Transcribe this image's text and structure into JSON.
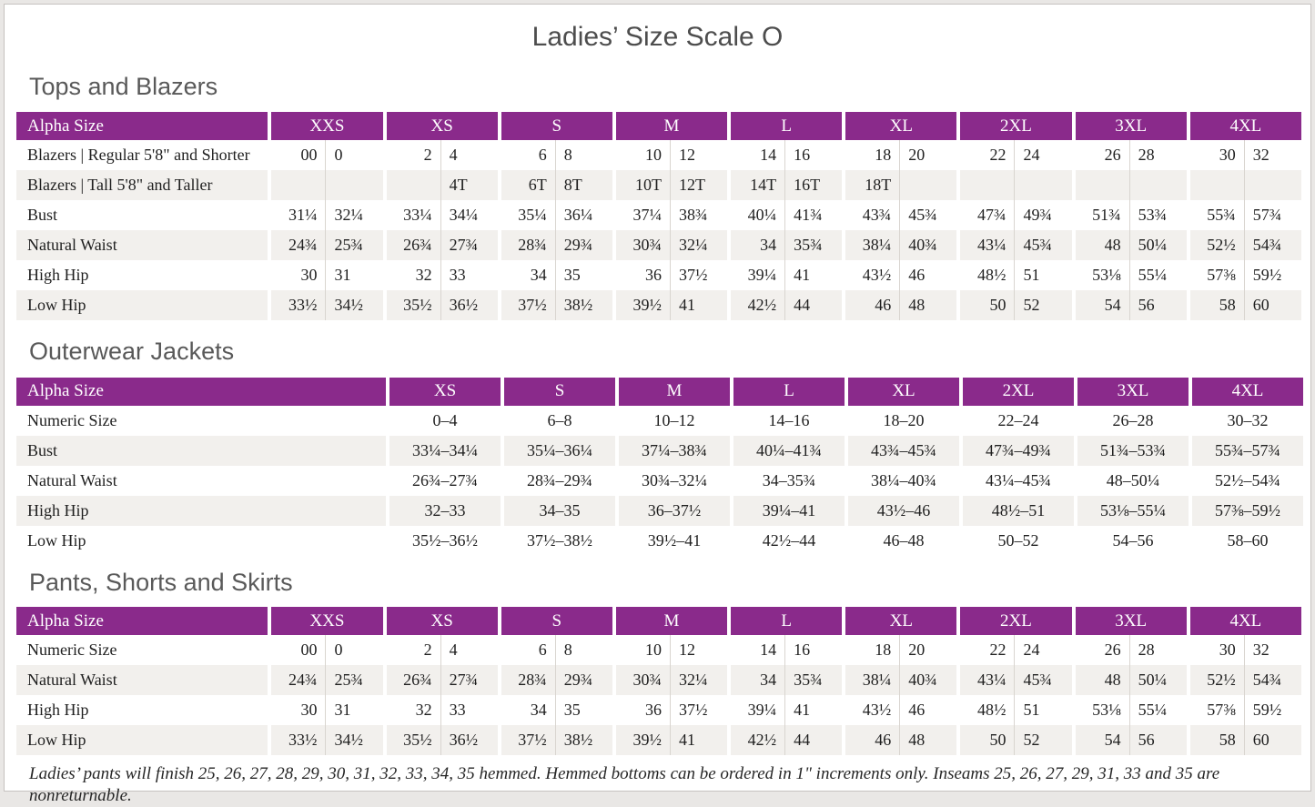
{
  "page": {
    "title": "Ladies’ Size Scale O",
    "footnote": "Ladies’ pants will finish 25, 26, 27, 28, 29, 30, 31, 32, 33, 34, 35 hemmed. Hemmed bottoms can be ordered in 1\" increments only. Inseams 25, 26, 27, 29, 31, 33 and 35 are nonreturnable."
  },
  "colors": {
    "accent_purple": "#8A2A8B",
    "alt_row": "#F2F0ED",
    "heading_gray": "#595959"
  },
  "tables": [
    {
      "id": "tops-and-blazers",
      "section_title": "Tops and Blazers",
      "header_label": "Alpha Size",
      "paired": true,
      "columns": [
        "XXS",
        "XS",
        "S",
        "M",
        "L",
        "XL",
        "2XL",
        "3XL",
        "4XL"
      ],
      "rows": [
        {
          "label": "Blazers | Regular 5'8\" and Shorter",
          "cells": [
            "00",
            "0",
            "2",
            "4",
            "6",
            "8",
            "10",
            "12",
            "14",
            "16",
            "18",
            "20",
            "22",
            "24",
            "26",
            "28",
            "30",
            "32"
          ]
        },
        {
          "label": "Blazers | Tall 5'8\" and Taller",
          "cells": [
            "",
            "",
            "",
            "4T",
            "6T",
            "8T",
            "10T",
            "12T",
            "14T",
            "16T",
            "18T",
            "",
            "",
            "",
            "",
            "",
            "",
            ""
          ]
        },
        {
          "label": "Bust",
          "cells": [
            "31¼",
            "32¼",
            "33¼",
            "34¼",
            "35¼",
            "36¼",
            "37¼",
            "38¾",
            "40¼",
            "41¾",
            "43¾",
            "45¾",
            "47¾",
            "49¾",
            "51¾",
            "53¾",
            "55¾",
            "57¾"
          ]
        },
        {
          "label": "Natural Waist",
          "cells": [
            "24¾",
            "25¾",
            "26¾",
            "27¾",
            "28¾",
            "29¾",
            "30¾",
            "32¼",
            "34",
            "35¾",
            "38¼",
            "40¾",
            "43¼",
            "45¾",
            "48",
            "50¼",
            "52½",
            "54¾"
          ]
        },
        {
          "label": "High Hip",
          "cells": [
            "30",
            "31",
            "32",
            "33",
            "34",
            "35",
            "36",
            "37½",
            "39¼",
            "41",
            "43½",
            "46",
            "48½",
            "51",
            "53⅛",
            "55¼",
            "57⅜",
            "59½"
          ]
        },
        {
          "label": "Low Hip",
          "cells": [
            "33½",
            "34½",
            "35½",
            "36½",
            "37½",
            "38½",
            "39½",
            "41",
            "42½",
            "44",
            "46",
            "48",
            "50",
            "52",
            "54",
            "56",
            "58",
            "60"
          ]
        }
      ]
    },
    {
      "id": "outerwear-jackets",
      "section_title": "Outerwear Jackets",
      "header_label": "Alpha Size",
      "paired": false,
      "columns": [
        "XS",
        "S",
        "M",
        "L",
        "XL",
        "2XL",
        "3XL",
        "4XL"
      ],
      "rows": [
        {
          "label": "Numeric Size",
          "cells": [
            "0–4",
            "6–8",
            "10–12",
            "14–16",
            "18–20",
            "22–24",
            "26–28",
            "30–32"
          ]
        },
        {
          "label": "Bust",
          "cells": [
            "33¼–34¼",
            "35¼–36¼",
            "37¼–38¾",
            "40¼–41¾",
            "43¾–45¾",
            "47¾–49¾",
            "51¾–53¾",
            "55¾–57¾"
          ]
        },
        {
          "label": "Natural Waist",
          "cells": [
            "26¾–27¾",
            "28¾–29¾",
            "30¾–32¼",
            "34–35¾",
            "38¼–40¾",
            "43¼–45¾",
            "48–50¼",
            "52½–54¾"
          ]
        },
        {
          "label": "High Hip",
          "cells": [
            "32–33",
            "34–35",
            "36–37½",
            "39¼–41",
            "43½–46",
            "48½–51",
            "53⅛–55¼",
            "57⅜–59½"
          ]
        },
        {
          "label": "Low Hip",
          "cells": [
            "35½–36½",
            "37½–38½",
            "39½–41",
            "42½–44",
            "46–48",
            "50–52",
            "54–56",
            "58–60"
          ]
        }
      ]
    },
    {
      "id": "pants-shorts-skirts",
      "section_title": "Pants, Shorts and Skirts",
      "header_label": "Alpha Size",
      "paired": true,
      "columns": [
        "XXS",
        "XS",
        "S",
        "M",
        "L",
        "XL",
        "2XL",
        "3XL",
        "4XL"
      ],
      "rows": [
        {
          "label": "Numeric Size",
          "cells": [
            "00",
            "0",
            "2",
            "4",
            "6",
            "8",
            "10",
            "12",
            "14",
            "16",
            "18",
            "20",
            "22",
            "24",
            "26",
            "28",
            "30",
            "32"
          ]
        },
        {
          "label": "Natural Waist",
          "cells": [
            "24¾",
            "25¾",
            "26¾",
            "27¾",
            "28¾",
            "29¾",
            "30¾",
            "32¼",
            "34",
            "35¾",
            "38¼",
            "40¾",
            "43¼",
            "45¾",
            "48",
            "50¼",
            "52½",
            "54¾"
          ]
        },
        {
          "label": "High Hip",
          "cells": [
            "30",
            "31",
            "32",
            "33",
            "34",
            "35",
            "36",
            "37½",
            "39¼",
            "41",
            "43½",
            "46",
            "48½",
            "51",
            "53⅛",
            "55¼",
            "57⅜",
            "59½"
          ]
        },
        {
          "label": "Low Hip",
          "cells": [
            "33½",
            "34½",
            "35½",
            "36½",
            "37½",
            "38½",
            "39½",
            "41",
            "42½",
            "44",
            "46",
            "48",
            "50",
            "52",
            "54",
            "56",
            "58",
            "60"
          ]
        }
      ]
    }
  ]
}
